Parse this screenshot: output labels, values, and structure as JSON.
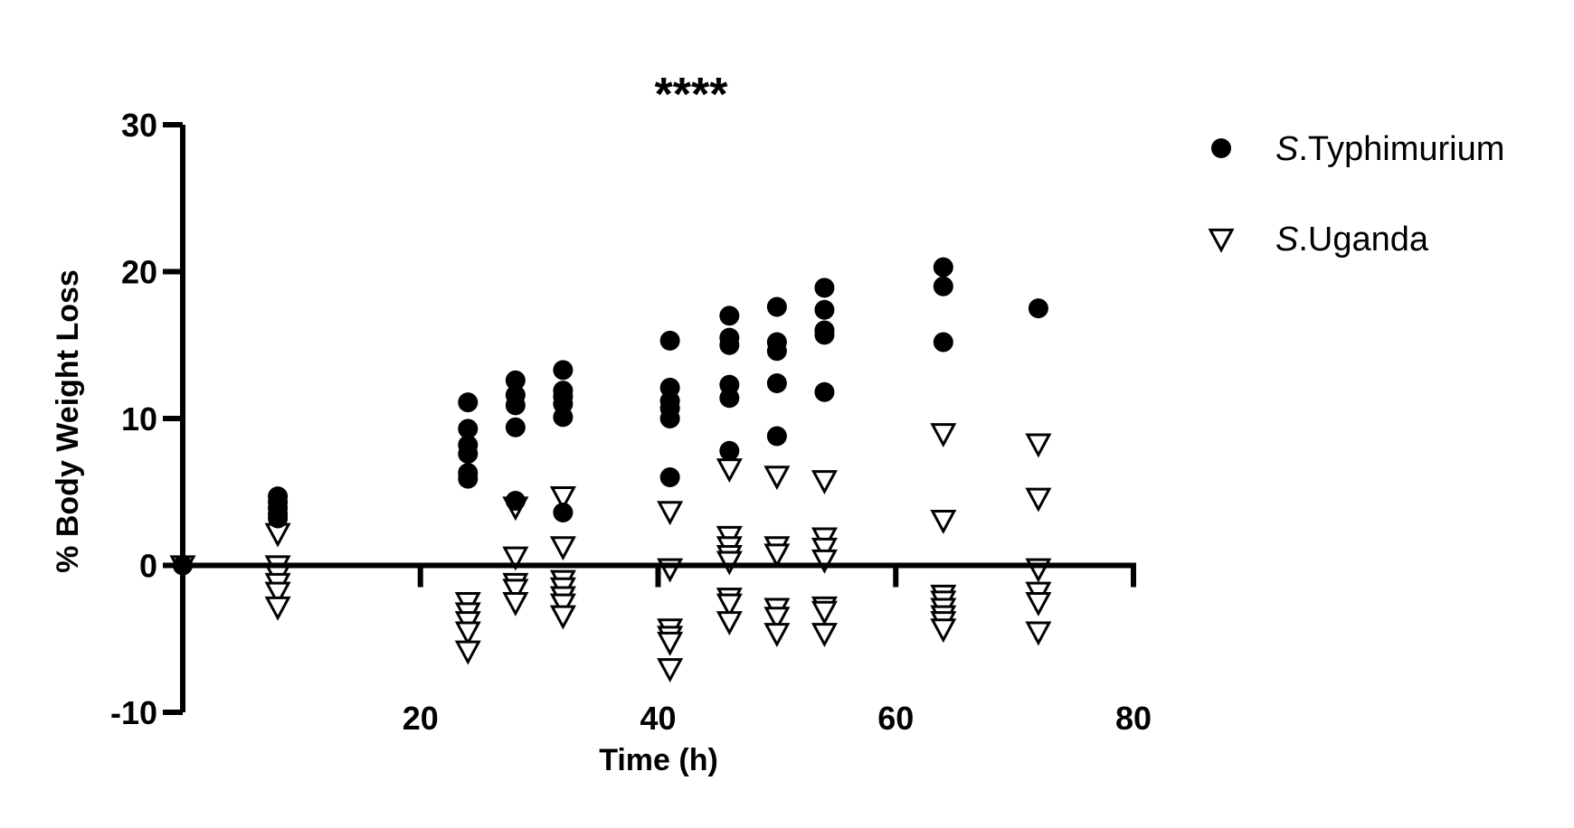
{
  "chart_data": {
    "type": "scatter",
    "title": "",
    "annotation": "****",
    "xlabel": "Time (h)",
    "ylabel": "% Body Weight Loss",
    "xlim": [
      0,
      80
    ],
    "ylim": [
      -10,
      30
    ],
    "xticks": [
      20,
      40,
      60,
      80
    ],
    "yticks": [
      -10,
      0,
      10,
      20,
      30
    ],
    "grid": false,
    "legend_position": "top-right",
    "colors": {
      "axis": "#000000",
      "typhimurium_fill": "#000000",
      "uganda_fill": "#ffffff",
      "uganda_edge": "#000000"
    },
    "series": [
      {
        "legend_italic": "S",
        "legend_rest": ".Typhimurium",
        "marker": "filled-circle",
        "points": [
          [
            0,
            0
          ],
          [
            8,
            4.7
          ],
          [
            8,
            4.3
          ],
          [
            8,
            3.9
          ],
          [
            8,
            3.5
          ],
          [
            8,
            3.2
          ],
          [
            24,
            11.1
          ],
          [
            24,
            9.3
          ],
          [
            24,
            8.2
          ],
          [
            24,
            7.6
          ],
          [
            24,
            6.3
          ],
          [
            24,
            5.9
          ],
          [
            28,
            12.6
          ],
          [
            28,
            11.6
          ],
          [
            28,
            10.9
          ],
          [
            28,
            9.4
          ],
          [
            28,
            4.4
          ],
          [
            32,
            13.3
          ],
          [
            32,
            11.9
          ],
          [
            32,
            11.5
          ],
          [
            32,
            11.0
          ],
          [
            32,
            10.1
          ],
          [
            32,
            3.6
          ],
          [
            41,
            15.3
          ],
          [
            41,
            12.1
          ],
          [
            41,
            11.2
          ],
          [
            41,
            10.7
          ],
          [
            41,
            10.0
          ],
          [
            41,
            6.0
          ],
          [
            46,
            17.0
          ],
          [
            46,
            15.5
          ],
          [
            46,
            15.0
          ],
          [
            46,
            12.3
          ],
          [
            46,
            11.4
          ],
          [
            46,
            7.8
          ],
          [
            50,
            17.6
          ],
          [
            50,
            15.2
          ],
          [
            50,
            14.6
          ],
          [
            50,
            12.4
          ],
          [
            50,
            8.8
          ],
          [
            54,
            18.9
          ],
          [
            54,
            17.4
          ],
          [
            54,
            16.0
          ],
          [
            54,
            15.7
          ],
          [
            54,
            11.8
          ],
          [
            64,
            20.3
          ],
          [
            64,
            19.0
          ],
          [
            64,
            15.2
          ],
          [
            72,
            17.5
          ]
        ]
      },
      {
        "legend_italic": "S",
        "legend_rest": ".Uganda",
        "marker": "open-inverted-triangle",
        "points": [
          [
            0,
            0
          ],
          [
            8,
            2.2
          ],
          [
            8,
            0.0
          ],
          [
            8,
            -0.6
          ],
          [
            8,
            -1.2
          ],
          [
            8,
            -1.8
          ],
          [
            8,
            -2.8
          ],
          [
            24,
            -2.5
          ],
          [
            24,
            -3.2
          ],
          [
            24,
            -3.8
          ],
          [
            24,
            -4.5
          ],
          [
            24,
            -5.8
          ],
          [
            28,
            4.0
          ],
          [
            28,
            0.6
          ],
          [
            28,
            -1.2
          ],
          [
            28,
            -1.6
          ],
          [
            28,
            -2.5
          ],
          [
            32,
            4.7
          ],
          [
            32,
            1.3
          ],
          [
            32,
            -1.0
          ],
          [
            32,
            -1.5
          ],
          [
            32,
            -2.1
          ],
          [
            32,
            -2.6
          ],
          [
            32,
            -3.4
          ],
          [
            41,
            3.7
          ],
          [
            41,
            -0.2
          ],
          [
            41,
            -4.3
          ],
          [
            41,
            -4.8
          ],
          [
            41,
            -5.2
          ],
          [
            41,
            -7.0
          ],
          [
            46,
            6.6
          ],
          [
            46,
            2.0
          ],
          [
            46,
            1.3
          ],
          [
            46,
            0.7
          ],
          [
            46,
            0.3
          ],
          [
            46,
            -2.2
          ],
          [
            46,
            -2.6
          ],
          [
            46,
            -3.8
          ],
          [
            50,
            6.1
          ],
          [
            50,
            1.3
          ],
          [
            50,
            0.8
          ],
          [
            50,
            -2.9
          ],
          [
            50,
            -3.5
          ],
          [
            50,
            -4.6
          ],
          [
            54,
            5.8
          ],
          [
            54,
            1.9
          ],
          [
            54,
            1.2
          ],
          [
            54,
            0.4
          ],
          [
            54,
            -2.8
          ],
          [
            54,
            -3.1
          ],
          [
            54,
            -4.6
          ],
          [
            64,
            9.0
          ],
          [
            64,
            3.1
          ],
          [
            64,
            -2.0
          ],
          [
            64,
            -2.4
          ],
          [
            64,
            -2.9
          ],
          [
            64,
            -3.4
          ],
          [
            64,
            -3.8
          ],
          [
            64,
            -4.3
          ],
          [
            72,
            8.3
          ],
          [
            72,
            4.6
          ],
          [
            72,
            -0.2
          ],
          [
            72,
            -1.8
          ],
          [
            72,
            -2.5
          ],
          [
            72,
            -4.5
          ]
        ]
      }
    ]
  }
}
